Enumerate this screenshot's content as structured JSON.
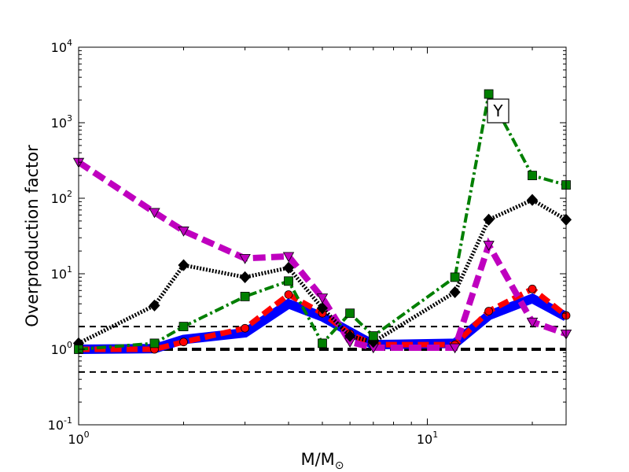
{
  "chart_data": {
    "type": "line",
    "xlabel": "M/M",
    "xlabel_subscript": "⊙",
    "ylabel": "Overproduction factor",
    "xscale": "log",
    "yscale": "log",
    "xlim": [
      1,
      25
    ],
    "ylim": [
      0.1,
      10000
    ],
    "x_ticks": [
      {
        "value": 1,
        "label_base": "10",
        "label_exp": "0"
      },
      {
        "value": 10,
        "label_base": "10",
        "label_exp": "1"
      }
    ],
    "y_ticks": [
      {
        "value": 0.1,
        "label_base": "10",
        "label_exp": "-1"
      },
      {
        "value": 1,
        "label_base": "10",
        "label_exp": "0"
      },
      {
        "value": 10,
        "label_base": "10",
        "label_exp": "1"
      },
      {
        "value": 100,
        "label_base": "10",
        "label_exp": "2"
      },
      {
        "value": 1000,
        "label_base": "10",
        "label_exp": "3"
      },
      {
        "value": 10000,
        "label_base": "10",
        "label_exp": "4"
      }
    ],
    "reference_lines": [
      {
        "y": 2.0,
        "style": "dashed",
        "color": "#000000",
        "width": 2
      },
      {
        "y": 1.0,
        "style": "dashed",
        "color": "#000000",
        "width": 4
      },
      {
        "y": 0.5,
        "style": "dashed",
        "color": "#000000",
        "width": 2
      }
    ],
    "series": [
      {
        "color": "#0000ff",
        "marker": "none",
        "dash": "solid",
        "width": 12,
        "x": [
          1,
          1.65,
          2,
          3,
          4,
          5,
          6,
          7,
          12,
          15,
          20,
          25
        ],
        "y": [
          1.0,
          1.02,
          1.35,
          1.65,
          4.0,
          2.7,
          1.7,
          1.15,
          1.2,
          2.8,
          4.7,
          2.7
        ]
      },
      {
        "color": "#ff0000",
        "marker": "circle",
        "dash": "dashed",
        "width": 7,
        "x": [
          1,
          1.65,
          2,
          3,
          4,
          5,
          6,
          7,
          12,
          15,
          20,
          25
        ],
        "y": [
          1.0,
          1.0,
          1.25,
          1.9,
          5.3,
          3.0,
          1.6,
          1.15,
          1.15,
          3.2,
          6.3,
          2.8
        ]
      },
      {
        "color": "#bf00bf",
        "marker": "triangle-down",
        "dash": "dashed",
        "width": 8,
        "x": [
          1,
          1.65,
          2,
          3,
          4,
          5,
          6,
          7,
          12,
          15,
          20,
          25
        ],
        "y": [
          300,
          65,
          37,
          16,
          17,
          4.8,
          1.25,
          1.05,
          1.05,
          24,
          2.3,
          1.6
        ]
      },
      {
        "color": "#000000",
        "marker": "diamond",
        "dash": "dotted",
        "width": 5,
        "x": [
          1,
          1.65,
          2,
          3,
          4,
          5,
          6,
          7,
          12,
          15,
          20,
          25
        ],
        "y": [
          1.2,
          3.8,
          13,
          9,
          12,
          3.5,
          1.5,
          1.25,
          5.7,
          52,
          95,
          52
        ]
      },
      {
        "color": "#007f00",
        "marker": "square",
        "dash": "dashdot",
        "width": 4,
        "x": [
          1,
          1.65,
          2,
          3,
          4,
          5,
          6,
          7,
          12,
          15,
          20,
          25
        ],
        "y": [
          1.0,
          1.2,
          2.0,
          5.0,
          8.0,
          1.2,
          3.0,
          1.5,
          9.0,
          2400,
          200,
          150
        ]
      }
    ],
    "annotation": {
      "text": "Y"
    }
  }
}
